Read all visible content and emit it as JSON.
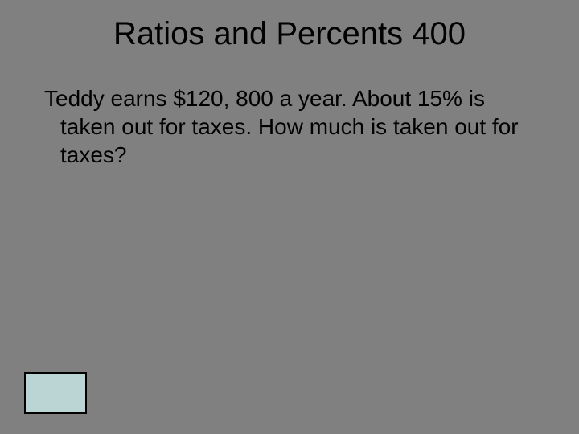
{
  "slide": {
    "title": "Ratios and Percents 400",
    "body": "Teddy earns $120, 800 a year. About 15% is taken out for taxes.  How much is taken out for taxes?",
    "background_color": "#808080",
    "title_fontsize": 40,
    "body_fontsize": 28,
    "text_color": "#000000"
  },
  "nav_button": {
    "fill_color": "#bbd5d5",
    "border_color": "#000000",
    "width": 78,
    "height": 52
  }
}
